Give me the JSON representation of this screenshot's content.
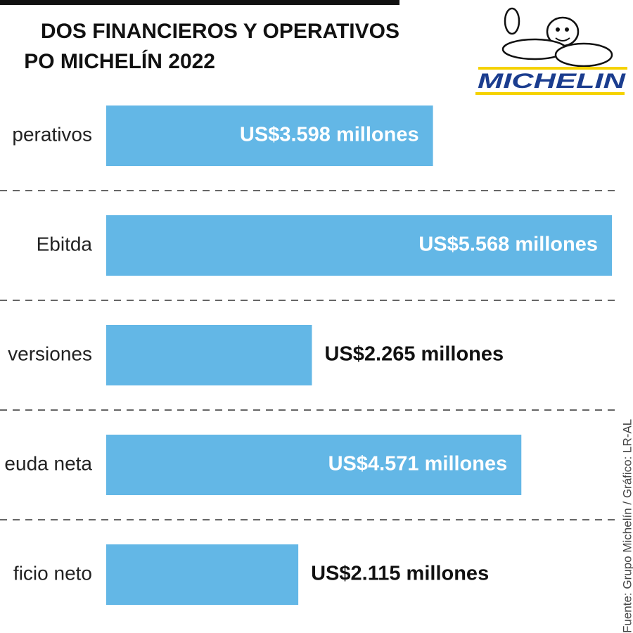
{
  "chart_data": {
    "type": "bar",
    "orientation": "horizontal",
    "title": [
      "DOS FINANCIEROS Y OPERATIVOS",
      "PO MICHELÍN 2022"
    ],
    "categories": [
      "perativos",
      "Ebitda",
      "versiones",
      "euda neta",
      "ficio neto"
    ],
    "values": [
      3598,
      5568,
      2265,
      4571,
      2115
    ],
    "value_labels": [
      "US$3.598 millones",
      "US$5.568 millones",
      "US$2.265 millones",
      "US$4.571 millones",
      "US$2.115 millones"
    ],
    "color": "#63b7e6",
    "source": "Fuente: Grupo Michelín / Gráfico: LR-AL",
    "logo": "MICHELIN"
  }
}
